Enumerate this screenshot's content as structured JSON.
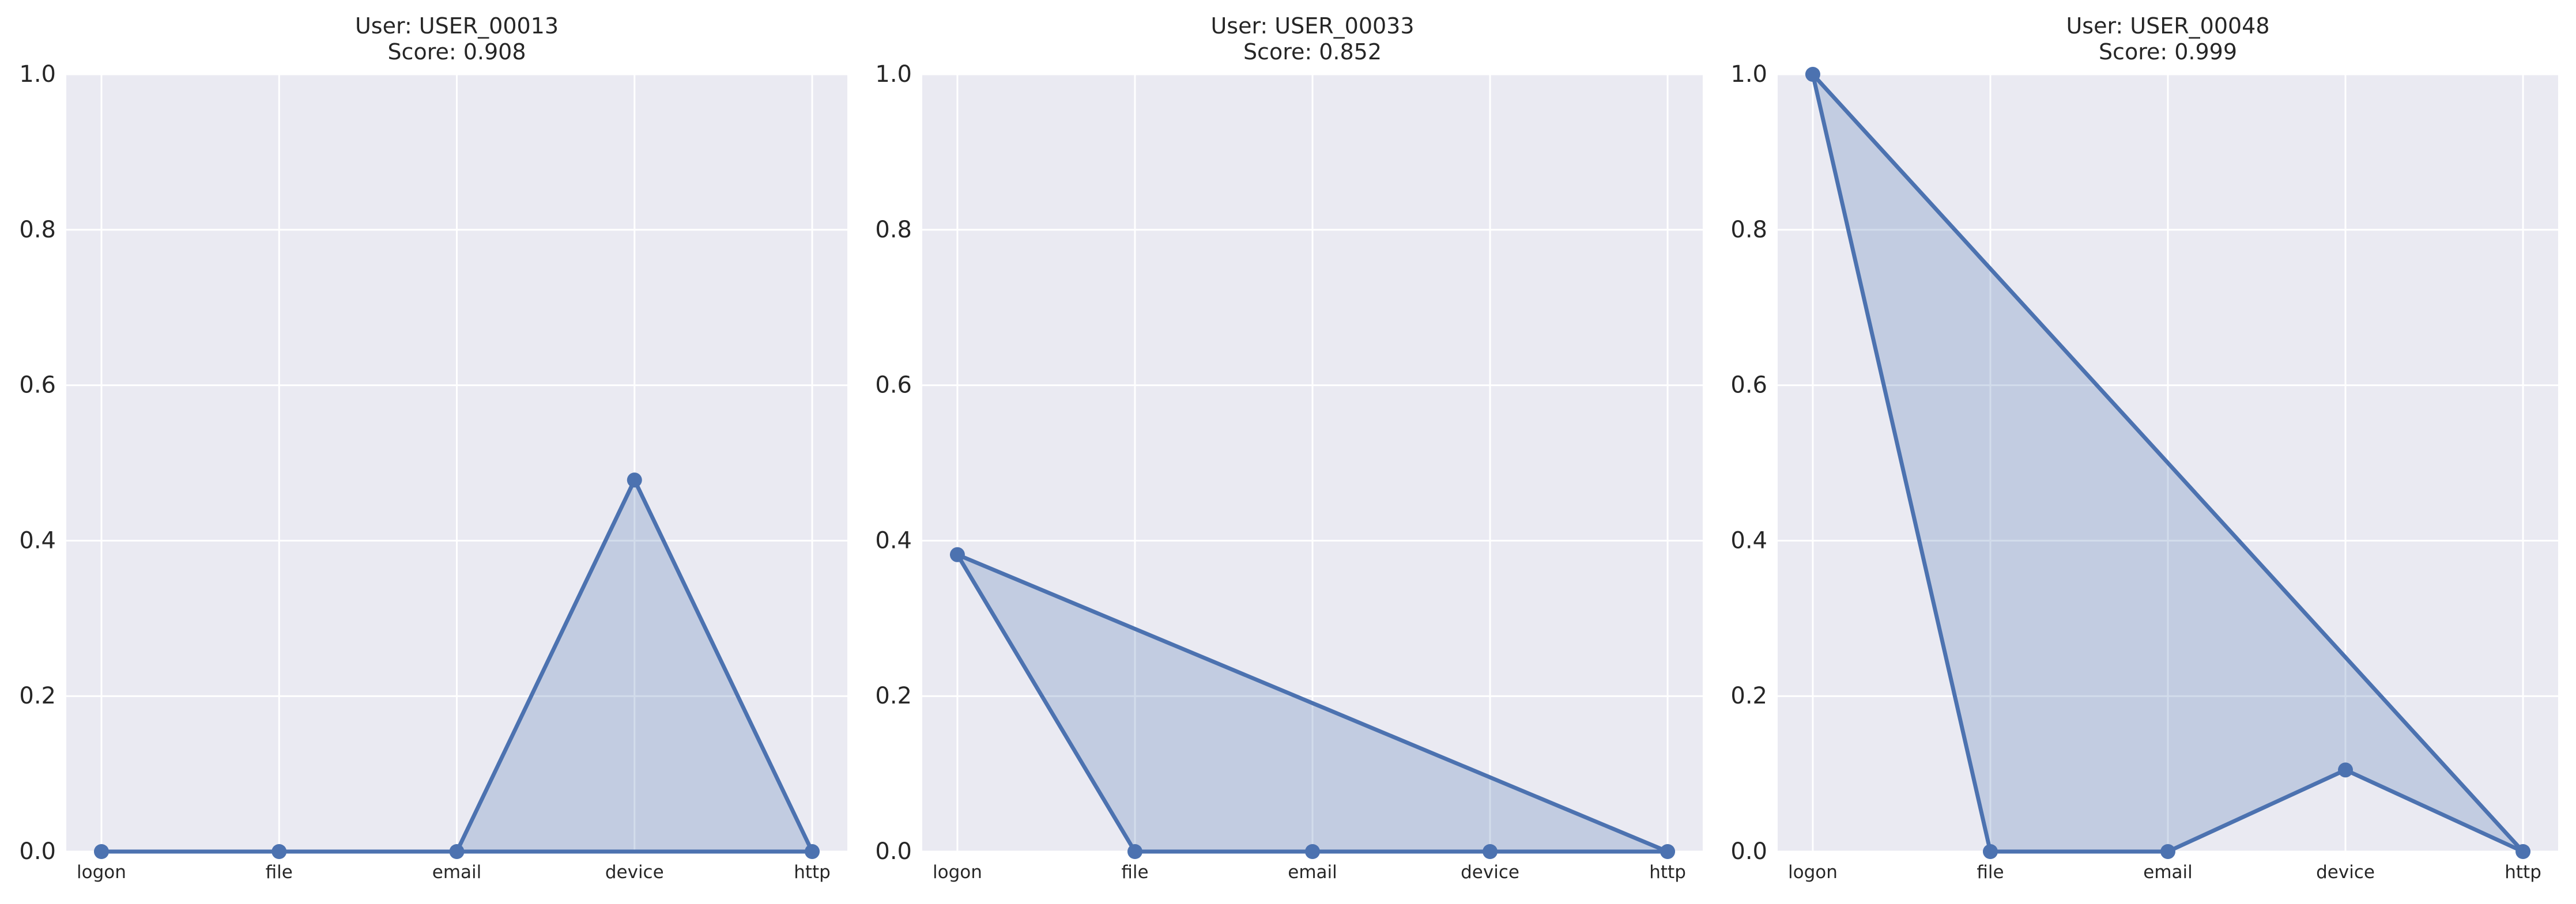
{
  "chart_data": [
    {
      "type": "line",
      "title_line1": "User: USER_00013",
      "title_line2": "Score: 0.908",
      "categories": [
        "logon",
        "file",
        "email",
        "device",
        "http"
      ],
      "values": [
        0.0,
        0.0,
        0.0,
        0.478,
        0.0
      ],
      "ylim": [
        0.0,
        1.0
      ],
      "yticks": [
        "0.0",
        "0.2",
        "0.4",
        "0.6",
        "0.8",
        "1.0"
      ],
      "grid": true,
      "fill_area": true
    },
    {
      "type": "line",
      "title_line1": "User: USER_00033",
      "title_line2": "Score: 0.852",
      "categories": [
        "logon",
        "file",
        "email",
        "device",
        "http"
      ],
      "values": [
        0.382,
        0.0,
        0.0,
        0.0,
        0.0
      ],
      "ylim": [
        0.0,
        1.0
      ],
      "yticks": [
        "0.0",
        "0.2",
        "0.4",
        "0.6",
        "0.8",
        "1.0"
      ],
      "grid": true,
      "fill_area": true
    },
    {
      "type": "line",
      "title_line1": "User: USER_00048",
      "title_line2": "Score: 0.999",
      "categories": [
        "logon",
        "file",
        "email",
        "device",
        "http"
      ],
      "values": [
        1.0,
        0.0,
        0.0,
        0.105,
        0.0
      ],
      "ylim": [
        0.0,
        1.0
      ],
      "yticks": [
        "0.0",
        "0.2",
        "0.4",
        "0.6",
        "0.8",
        "1.0"
      ],
      "grid": true,
      "fill_area": true
    }
  ],
  "colors": {
    "line": "#4c72b0",
    "fill": "#4c72b0",
    "plot_background": "#eaeaf2",
    "grid": "#ffffff"
  }
}
